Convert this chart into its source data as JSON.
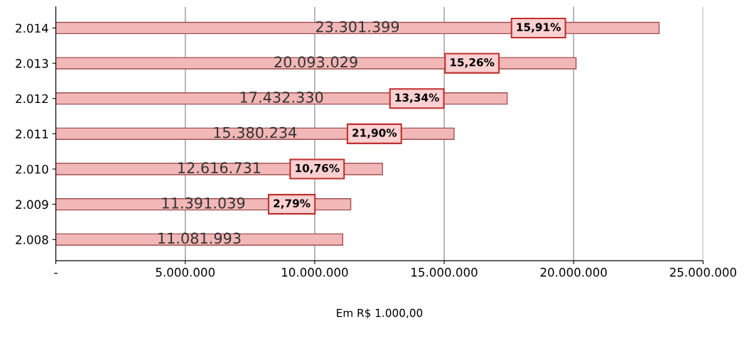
{
  "chart_data": {
    "type": "bar",
    "orientation": "horizontal",
    "categories": [
      "2.014",
      "2.013",
      "2.012",
      "2.011",
      "2.010",
      "2.009",
      "2.008"
    ],
    "values": [
      23301399,
      20093029,
      17432330,
      15380234,
      12616731,
      11391039,
      11081993
    ],
    "value_labels": [
      "23.301.399",
      "20.093.029",
      "17.432.330",
      "15.380.234",
      "12.616.731",
      "11.391.039",
      "11.081.993"
    ],
    "color": "#f2b8b8",
    "xlim": [
      0,
      25000000
    ],
    "xticks": [
      {
        "value": 0,
        "label": "-"
      },
      {
        "value": 5000000,
        "label": "5.000.000"
      },
      {
        "value": 10000000,
        "label": "10.000.000"
      },
      {
        "value": 15000000,
        "label": "15.000.000"
      },
      {
        "value": 20000000,
        "label": "20.000.000"
      },
      {
        "value": 25000000,
        "label": "25.000.000"
      }
    ],
    "xlabel": "Em R$ 1.000,00",
    "grid": "x",
    "legend": false,
    "annotations": [
      "15,91%",
      "15,26%",
      "13,34%",
      "21,90%",
      "10,76%",
      "2,79%"
    ]
  }
}
